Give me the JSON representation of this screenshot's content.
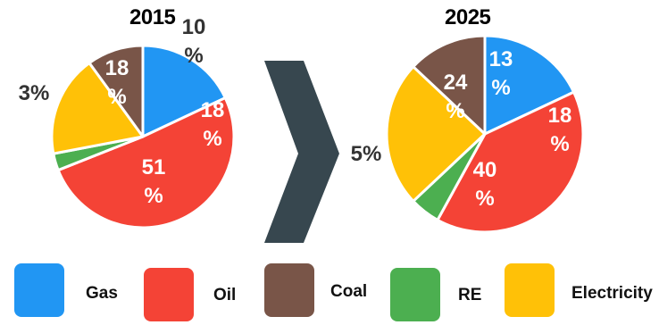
{
  "chart_data": [
    {
      "type": "pie",
      "title": "2015",
      "slices": [
        {
          "name": "Gas",
          "value": 18,
          "label": "18%"
        },
        {
          "name": "Oil",
          "value": 51,
          "label": "51%"
        },
        {
          "name": "RE",
          "value": 3,
          "label": "3%"
        },
        {
          "name": "Electricity",
          "value": 18,
          "label": "18%"
        },
        {
          "name": "Coal",
          "value": 10,
          "label": "10%"
        }
      ]
    },
    {
      "type": "pie",
      "title": "2025",
      "slices": [
        {
          "name": "Gas",
          "value": 18,
          "label": "18%"
        },
        {
          "name": "Oil",
          "value": 40,
          "label": "40%"
        },
        {
          "name": "RE",
          "value": 5,
          "label": "5%"
        },
        {
          "name": "Electricity",
          "value": 24,
          "label": "24%"
        },
        {
          "name": "Coal",
          "value": 13,
          "label": "13%"
        }
      ]
    }
  ],
  "colors": {
    "Gas": "#2196f3",
    "Oil": "#f44336",
    "Coal": "#795548",
    "RE": "#4caf50",
    "Electricity": "#ffc107",
    "arrow": "#37474f"
  },
  "legend": [
    {
      "name": "Gas",
      "label": "Gas"
    },
    {
      "name": "Oil",
      "label": "Oil"
    },
    {
      "name": "Coal",
      "label": "Coal"
    },
    {
      "name": "RE",
      "label": "RE"
    },
    {
      "name": "Electricity",
      "label": "Electricity"
    }
  ],
  "arrow_icon": "chevron-right-icon"
}
